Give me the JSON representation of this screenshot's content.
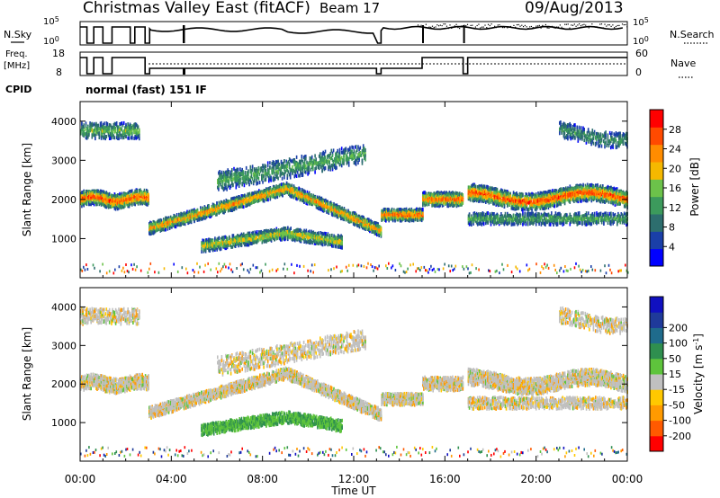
{
  "header": {
    "title": "Christmas Valley East (fitACF)",
    "beam": "Beam 17",
    "date": "09/Aug/2013"
  },
  "strips": {
    "nsky_label": "N.Sky",
    "nsky_ticks": [
      "10^5",
      "10^0"
    ],
    "nsearch_label": "N.Search",
    "nsearch_ticks": [
      "10^5",
      "10^0"
    ],
    "freq_label": [
      "Freq.",
      "[MHz]"
    ],
    "freq_ticks": [
      "18",
      "8"
    ],
    "nave_label": "Nave",
    "nave_ticks": [
      "60",
      "0"
    ],
    "cpid_label": "CPID",
    "cpid_value": "normal (fast) 151 IF"
  },
  "colors": {
    "power_scale": [
      "#0000ff",
      "#1a3fa8",
      "#2d6e6e",
      "#3c9a5c",
      "#6cc24a",
      "#f5b800",
      "#ff8c00",
      "#ff4a00",
      "#ff0000"
    ],
    "velocity_scale": [
      "#ff0000",
      "#ff5a00",
      "#ff9a00",
      "#ffc800",
      "#c0c0c0",
      "#5ec43c",
      "#2f8f4f",
      "#1f6b8c",
      "#1f3a9a",
      "#1010c0"
    ]
  },
  "chart_data": [
    {
      "type": "heatmap",
      "panel": "power",
      "ylabel": "Slant Range [km]",
      "yticks": [
        1000,
        2000,
        3000,
        4000
      ],
      "ylim": [
        0,
        4500
      ],
      "xlim_hours": [
        0,
        24
      ],
      "xticks": [
        "00:00",
        "04:00",
        "08:00",
        "12:00",
        "16:00",
        "20:00",
        "00:00"
      ],
      "colorbar": {
        "label": "Power [dB]",
        "ticks": [
          4,
          8,
          12,
          16,
          20,
          24,
          28
        ],
        "range": [
          0,
          32
        ]
      }
    },
    {
      "type": "heatmap",
      "panel": "velocity",
      "ylabel": "Slant Range [km]",
      "yticks": [
        1000,
        2000,
        3000,
        4000
      ],
      "ylim": [
        0,
        4500
      ],
      "xlim_hours": [
        0,
        24
      ],
      "xticks": [
        "00:00",
        "04:00",
        "08:00",
        "12:00",
        "16:00",
        "20:00",
        "00:00"
      ],
      "xlabel": "Time UT",
      "colorbar": {
        "label": "Velocity [m s",
        "label_sup": "-1",
        "label_end": "]",
        "ticks": [
          -200,
          -100,
          -50,
          -15,
          15,
          50,
          100,
          200
        ]
      }
    }
  ]
}
